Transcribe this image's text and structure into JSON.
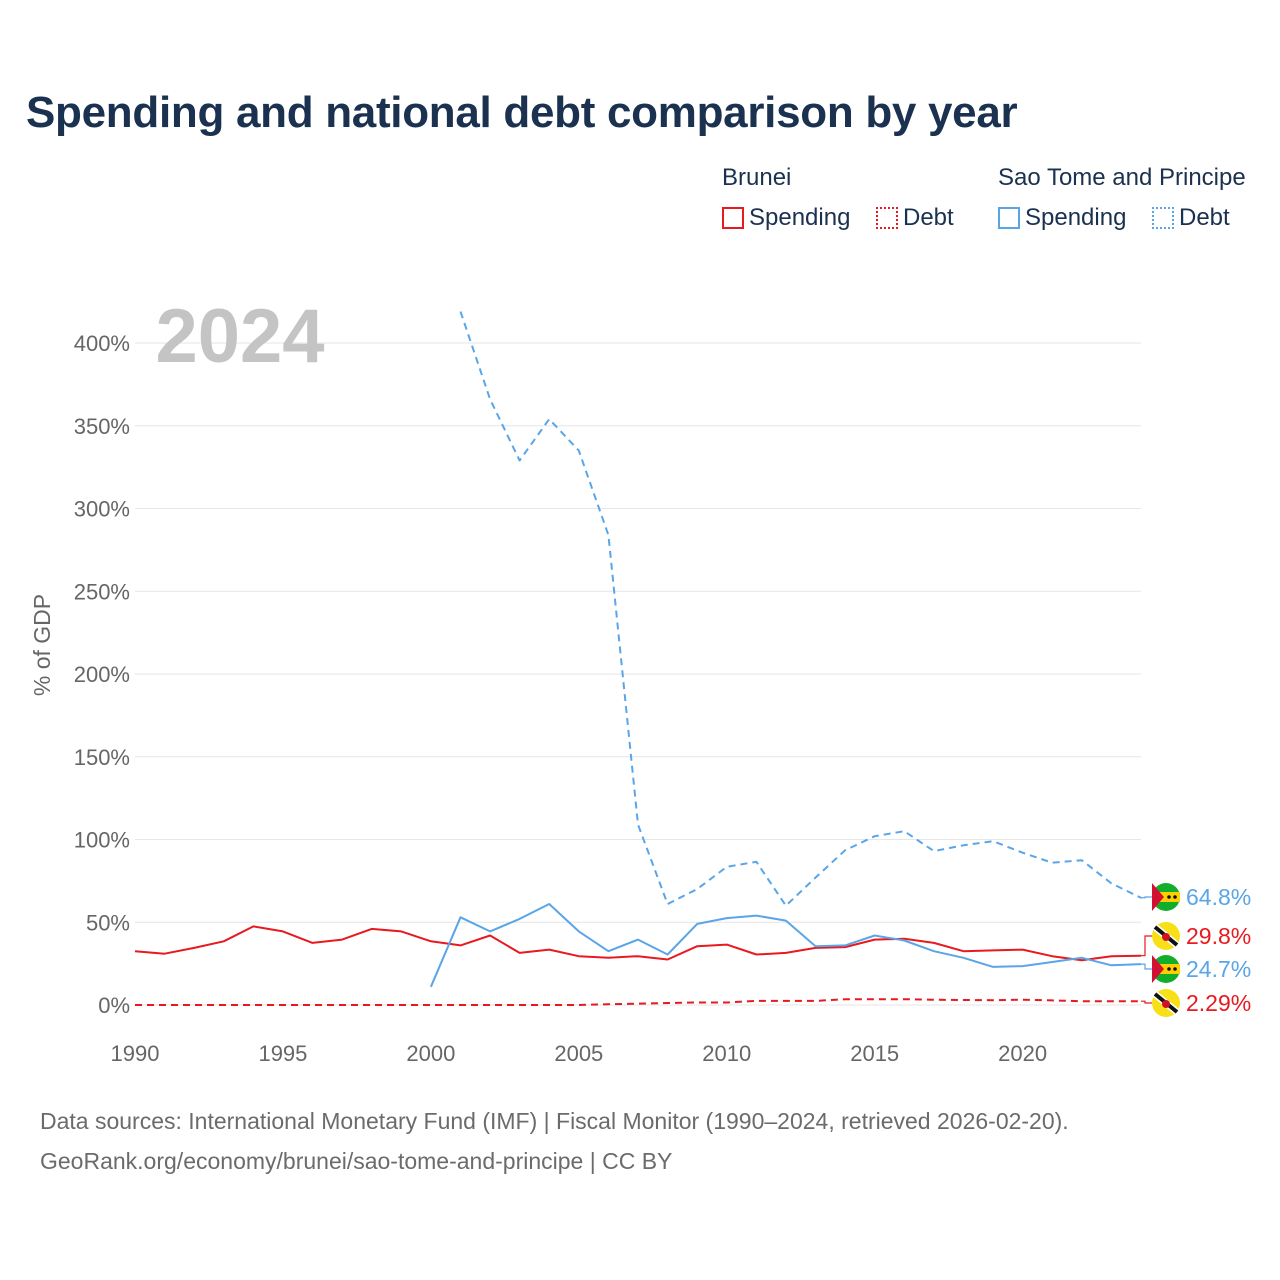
{
  "page": {
    "title": "Spending and national debt comparison by year",
    "year_overlay": "2024",
    "footer_sources": "Data sources: International Monetary Fund (IMF) | Fiscal Monitor (1990–2024, retrieved 2026-02-20).",
    "footer_credit": "GeoRank.org/economy/brunei/sao-tome-and-principe | CC BY"
  },
  "legend": {
    "groups": [
      {
        "country": "Brunei",
        "color": "#e8191f",
        "items": [
          {
            "label": "Spending",
            "style": "solid"
          },
          {
            "label": "Debt",
            "style": "dotted"
          }
        ]
      },
      {
        "country": "Sao Tome and Principe",
        "color": "#5aa5e8",
        "items": [
          {
            "label": "Spending",
            "style": "solid"
          },
          {
            "label": "Debt",
            "style": "dotted"
          }
        ]
      }
    ]
  },
  "chart_data": {
    "type": "line",
    "title": "Spending and national debt comparison by year",
    "xlabel": "",
    "ylabel": "% of GDP",
    "xlim": [
      1990,
      2024
    ],
    "ylim": [
      0,
      420
    ],
    "x_ticks": [
      1990,
      1995,
      2000,
      2005,
      2010,
      2015,
      2020
    ],
    "y_ticks": [
      0,
      50,
      100,
      150,
      200,
      250,
      300,
      350,
      400
    ],
    "y_tick_labels": [
      "0%",
      "50%",
      "100%",
      "150%",
      "200%",
      "250%",
      "300%",
      "350%",
      "400%"
    ],
    "grid": true,
    "series": [
      {
        "name": "Brunei Spending",
        "country": "Brunei",
        "color": "#e8191f",
        "dash": "solid",
        "end_label": "29.8%",
        "x": [
          1990,
          1991,
          1992,
          1993,
          1994,
          1995,
          1996,
          1997,
          1998,
          1999,
          2000,
          2001,
          2002,
          2003,
          2004,
          2005,
          2006,
          2007,
          2008,
          2009,
          2010,
          2011,
          2012,
          2013,
          2014,
          2015,
          2016,
          2017,
          2018,
          2019,
          2020,
          2021,
          2022,
          2023,
          2024
        ],
        "values": [
          32.5,
          31,
          34.5,
          38.5,
          47.5,
          44.5,
          37.5,
          39.5,
          46,
          44.5,
          38.5,
          36,
          42,
          31.5,
          33.5,
          29.5,
          28.5,
          29.5,
          27.5,
          35.5,
          36.5,
          30.5,
          31.5,
          34.5,
          35,
          39.5,
          40,
          37.5,
          32.5,
          33,
          33.5,
          29.5,
          27,
          29.5,
          29.8
        ]
      },
      {
        "name": "Brunei Debt",
        "country": "Brunei",
        "color": "#e8191f",
        "dash": "dashed",
        "end_label": "2.29%",
        "x": [
          1990,
          1991,
          1992,
          1993,
          1994,
          1995,
          1996,
          1997,
          1998,
          1999,
          2000,
          2001,
          2002,
          2003,
          2004,
          2005,
          2006,
          2007,
          2008,
          2009,
          2010,
          2011,
          2012,
          2013,
          2014,
          2015,
          2016,
          2017,
          2018,
          2019,
          2020,
          2021,
          2022,
          2023,
          2024
        ],
        "values": [
          0,
          0,
          0,
          0,
          0,
          0,
          0,
          0,
          0,
          0,
          0,
          0,
          0,
          0,
          0,
          0,
          0.5,
          0.8,
          1.2,
          1.5,
          1.5,
          2.5,
          2.5,
          2.5,
          3.5,
          3.5,
          3.5,
          3.2,
          3,
          2.9,
          3.2,
          2.8,
          2.3,
          2.3,
          2.29
        ]
      },
      {
        "name": "Sao Tome and Principe Spending",
        "country": "Sao Tome and Principe",
        "color": "#5aa5e8",
        "dash": "solid",
        "end_label": "24.7%",
        "x": [
          2000,
          2001,
          2002,
          2003,
          2004,
          2005,
          2006,
          2007,
          2008,
          2009,
          2010,
          2011,
          2012,
          2013,
          2014,
          2015,
          2016,
          2017,
          2018,
          2019,
          2020,
          2021,
          2022,
          2023,
          2024
        ],
        "values": [
          11,
          53,
          44.5,
          52,
          61,
          44.5,
          32.5,
          39.5,
          30.5,
          49,
          52.5,
          54,
          51,
          35.5,
          36,
          42,
          39,
          32.5,
          28.5,
          23,
          23.5,
          26,
          28.5,
          24,
          24.7
        ]
      },
      {
        "name": "Sao Tome and Principe Debt",
        "country": "Sao Tome and Principe",
        "color": "#5aa5e8",
        "dash": "dashed",
        "end_label": "64.8%",
        "x": [
          2001,
          2002,
          2003,
          2004,
          2005,
          2006,
          2007,
          2008,
          2009,
          2010,
          2011,
          2012,
          2013,
          2014,
          2015,
          2016,
          2017,
          2018,
          2019,
          2020,
          2021,
          2022,
          2023,
          2024
        ],
        "values": [
          419,
          366,
          329,
          354,
          335,
          284,
          109,
          61,
          70,
          83.5,
          86.5,
          60,
          77,
          93.5,
          102,
          105,
          93,
          96.5,
          99,
          92,
          86,
          87.5,
          73.5,
          64.8
        ]
      }
    ]
  }
}
